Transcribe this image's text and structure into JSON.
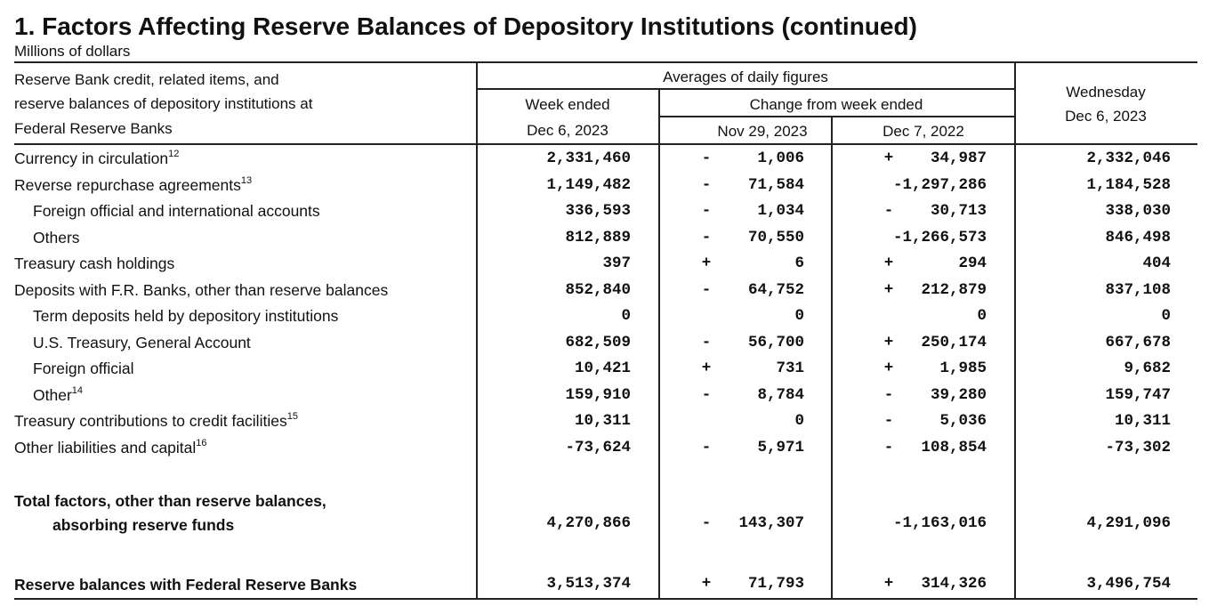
{
  "title": "1. Factors Affecting Reserve Balances of Depository Institutions (continued)",
  "units": "Millions of dollars",
  "header": {
    "stub": [
      "Reserve Bank credit, related items, and",
      "reserve balances of depository institutions at",
      "Federal Reserve Banks"
    ],
    "averages": "Averages of daily figures",
    "week_ended": "Week ended",
    "week_ended_date": "Dec 6, 2023",
    "change_from": "Change from week ended",
    "change_date_1": "Nov 29, 2023",
    "change_date_2": "Dec 7, 2022",
    "wednesday": "Wednesday",
    "wednesday_date": "Dec 6, 2023"
  },
  "rows": [
    {
      "label": "Currency in circulation",
      "note": "12",
      "indent": false,
      "bold": false,
      "week": "2,331,460",
      "s1": "-",
      "c1": "1,006",
      "s2": "+",
      "c2": "34,987",
      "wed": "2,332,046"
    },
    {
      "label": "Reverse repurchase agreements",
      "note": "13",
      "indent": false,
      "bold": false,
      "week": "1,149,482",
      "s1": "-",
      "c1": "71,584",
      "s2": "",
      "c2": "-1,297,286",
      "wed": "1,184,528"
    },
    {
      "label": "Foreign official and international accounts",
      "note": "",
      "indent": true,
      "bold": false,
      "week": "336,593",
      "s1": "-",
      "c1": "1,034",
      "s2": "-",
      "c2": "30,713",
      "wed": "338,030"
    },
    {
      "label": "Others",
      "note": "",
      "indent": true,
      "bold": false,
      "week": "812,889",
      "s1": "-",
      "c1": "70,550",
      "s2": "",
      "c2": "-1,266,573",
      "wed": "846,498"
    },
    {
      "label": "Treasury cash holdings",
      "note": "",
      "indent": false,
      "bold": false,
      "week": "397",
      "s1": "+",
      "c1": "6",
      "s2": "+",
      "c2": "294",
      "wed": "404"
    },
    {
      "label": "Deposits with F.R. Banks, other than reserve balances",
      "note": "",
      "indent": false,
      "bold": false,
      "week": "852,840",
      "s1": "-",
      "c1": "64,752",
      "s2": "+",
      "c2": "212,879",
      "wed": "837,108"
    },
    {
      "label": "Term deposits held by depository institutions",
      "note": "",
      "indent": true,
      "bold": false,
      "week": "0",
      "s1": "",
      "c1": "0",
      "s2": "",
      "c2": "0",
      "wed": "0"
    },
    {
      "label": "U.S. Treasury, General Account",
      "note": "",
      "indent": true,
      "bold": false,
      "week": "682,509",
      "s1": "-",
      "c1": "56,700",
      "s2": "+",
      "c2": "250,174",
      "wed": "667,678"
    },
    {
      "label": "Foreign official",
      "note": "",
      "indent": true,
      "bold": false,
      "week": "10,421",
      "s1": "+",
      "c1": "731",
      "s2": "+",
      "c2": "1,985",
      "wed": "9,682"
    },
    {
      "label": "Other",
      "note": "14",
      "indent": true,
      "bold": false,
      "week": "159,910",
      "s1": "-",
      "c1": "8,784",
      "s2": "-",
      "c2": "39,280",
      "wed": "159,747"
    },
    {
      "label": "Treasury contributions to credit facilities",
      "note": "15",
      "indent": false,
      "bold": false,
      "week": "10,311",
      "s1": "",
      "c1": "0",
      "s2": "-",
      "c2": "5,036",
      "wed": "10,311"
    },
    {
      "label": "Other liabilities and capital",
      "note": "16",
      "indent": false,
      "bold": false,
      "week": "-73,624",
      "s1": "-",
      "c1": "5,971",
      "s2": "-",
      "c2": "108,854",
      "wed": "-73,302"
    }
  ],
  "total": {
    "label_1": "Total factors, other than reserve balances,",
    "label_2": "absorbing reserve funds",
    "week": "4,270,866",
    "s1": "-",
    "c1": "143,307",
    "s2": "",
    "c2": "-1,163,016",
    "wed": "4,291,096"
  },
  "reserve": {
    "label": "Reserve balances with Federal Reserve Banks",
    "week": "3,513,374",
    "s1": "+",
    "c1": "71,793",
    "s2": "+",
    "c2": "314,326",
    "wed": "3,496,754"
  }
}
